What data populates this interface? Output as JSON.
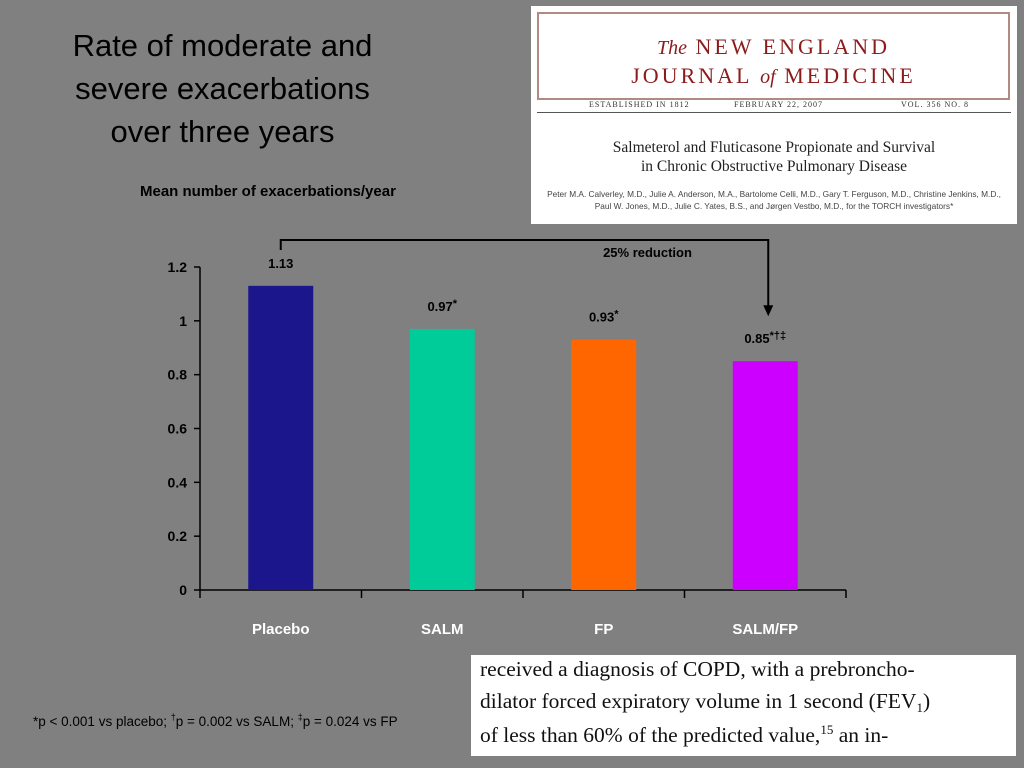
{
  "title": "Rate of moderate and\nsevere exacerbations\nover three years",
  "chart_data": {
    "type": "bar",
    "ylabel": "Mean number of exacerbations/year",
    "categories": [
      "Placebo",
      "SALM",
      "FP",
      "SALM/FP"
    ],
    "values": [
      1.13,
      0.97,
      0.93,
      0.85
    ],
    "data_labels": [
      {
        "value": "1.13",
        "marks": ""
      },
      {
        "value": "0.97",
        "marks": "*"
      },
      {
        "value": "0.93",
        "marks": "*"
      },
      {
        "value": "0.85",
        "marks": "*†‡"
      }
    ],
    "colors": [
      "#1c168c",
      "#00cc99",
      "#ff6600",
      "#cc00ff"
    ],
    "ylim": [
      0,
      1.2
    ],
    "yticks": [
      0,
      0.2,
      0.4,
      0.6,
      0.8,
      1,
      1.2
    ],
    "ytick_labels": [
      "0",
      "0.2",
      "0.4",
      "0.6",
      "0.8",
      "1",
      "1.2"
    ],
    "annotation": {
      "text": "25% reduction",
      "from": "Placebo",
      "to": "SALM/FP"
    },
    "grid": false
  },
  "footnote": {
    "a_mark": "*",
    "a_text": "p < 0.001 vs placebo; ",
    "b_mark": "†",
    "b_text": "p = 0.002 vs SALM; ",
    "c_mark": "‡",
    "c_text": "p = 0.024 vs FP"
  },
  "journal": {
    "the": "The",
    "line1": "NEW ENGLAND",
    "line2_a": "JOURNAL",
    "of": "of",
    "line2_b": "MEDICINE",
    "established": "ESTABLISHED IN 1812",
    "date": "FEBRUARY 22, 2007",
    "volume": "VOL. 356   NO. 8",
    "article_title": "Salmeterol and Fluticasone Propionate and Survival\nin Chronic Obstructive Pulmonary Disease",
    "authors": "Peter M.A. Calverley, M.D., Julie A. Anderson, M.A., Bartolome Celli, M.D., Gary T. Ferguson, M.D., Christine Jenkins, M.D.,\nPaul W. Jones, M.D., Julie C. Yates, B.S., and Jørgen Vestbo, M.D., for the TORCH investigators*"
  },
  "excerpt": {
    "line1": "received a diagnosis of COPD, with a prebroncho-",
    "line2_a": "dilator forced expiratory volume in 1 second (FEV",
    "line2_sub": "1",
    "line2_b": ")",
    "line3_a": "of less than 60% of the predicted value,",
    "line3_sup": "15",
    "line3_b": " an in-"
  }
}
